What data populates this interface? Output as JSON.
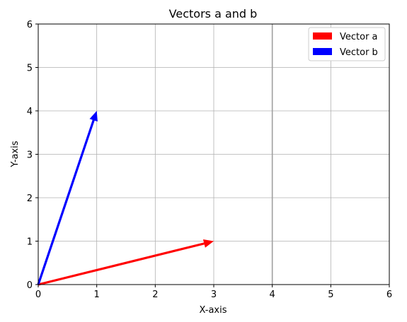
{
  "chart_data": {
    "type": "quiver",
    "title": "Vectors a and b",
    "xlabel": "X-axis",
    "ylabel": "Y-axis",
    "xlim": [
      0,
      6
    ],
    "ylim": [
      0,
      6
    ],
    "xticks": [
      "0",
      "1",
      "2",
      "3",
      "4",
      "5",
      "6"
    ],
    "yticks": [
      "0",
      "1",
      "2",
      "3",
      "4",
      "5",
      "6"
    ],
    "grid": true,
    "legend_position": "upper right",
    "vectors": [
      {
        "name": "Vector a",
        "x0": 0,
        "y0": 0,
        "dx": 3,
        "dy": 1,
        "color": "#ff0000"
      },
      {
        "name": "Vector b",
        "x0": 0,
        "y0": 0,
        "dx": 1,
        "dy": 4,
        "color": "#0000ff"
      }
    ],
    "reference_lines": [
      {
        "orientation": "vertical",
        "x": 4,
        "color": "#a0a0a0"
      }
    ]
  }
}
